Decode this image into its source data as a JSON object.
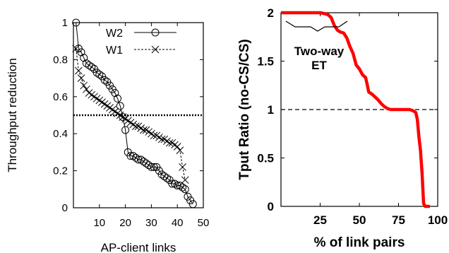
{
  "chart_data": [
    {
      "type": "line",
      "xlabel": "AP-client links",
      "ylabel": "Throughput reduction",
      "xlim": [
        0,
        50
      ],
      "ylim": [
        0,
        1
      ],
      "xticks": [
        "10",
        "20",
        "30",
        "40",
        "50"
      ],
      "yticks": [
        "0",
        "0.2",
        "0.4",
        "0.6",
        "0.8",
        "1"
      ],
      "legend_position": "top-right",
      "reference_line": 0.5,
      "series": [
        {
          "name": "W2",
          "marker": "circle",
          "line": "solid",
          "x": [
            1,
            2,
            3,
            4,
            5,
            6,
            7,
            8,
            9,
            10,
            11,
            12,
            13,
            14,
            15,
            16,
            17,
            18,
            19,
            20,
            21,
            22,
            23,
            24,
            25,
            26,
            27,
            28,
            29,
            30,
            31,
            32,
            33,
            34,
            35,
            36,
            37,
            38,
            39,
            40,
            41,
            42,
            43,
            44,
            45,
            46
          ],
          "y": [
            1.0,
            0.86,
            0.84,
            0.81,
            0.78,
            0.77,
            0.76,
            0.75,
            0.73,
            0.72,
            0.71,
            0.69,
            0.68,
            0.66,
            0.64,
            0.62,
            0.59,
            0.55,
            0.49,
            0.42,
            0.3,
            0.28,
            0.28,
            0.27,
            0.26,
            0.26,
            0.25,
            0.24,
            0.23,
            0.22,
            0.22,
            0.22,
            0.2,
            0.18,
            0.17,
            0.16,
            0.15,
            0.13,
            0.13,
            0.12,
            0.12,
            0.11,
            0.1,
            0.06,
            0.04,
            0.02
          ]
        },
        {
          "name": "W1",
          "marker": "x",
          "line": "dashed",
          "x": [
            1,
            2,
            3,
            4,
            5,
            6,
            7,
            8,
            9,
            10,
            11,
            12,
            13,
            14,
            15,
            16,
            17,
            18,
            19,
            20,
            21,
            22,
            23,
            24,
            25,
            26,
            27,
            28,
            29,
            30,
            31,
            32,
            33,
            34,
            35,
            36,
            37,
            38,
            39,
            40,
            41,
            42,
            43
          ],
          "y": [
            0.86,
            0.74,
            0.7,
            0.66,
            0.64,
            0.62,
            0.61,
            0.6,
            0.59,
            0.58,
            0.57,
            0.56,
            0.55,
            0.54,
            0.53,
            0.52,
            0.51,
            0.5,
            0.49,
            0.48,
            0.47,
            0.46,
            0.45,
            0.44,
            0.44,
            0.43,
            0.42,
            0.42,
            0.41,
            0.4,
            0.39,
            0.39,
            0.38,
            0.37,
            0.37,
            0.36,
            0.35,
            0.35,
            0.34,
            0.33,
            0.31,
            0.22,
            0.15
          ]
        }
      ]
    },
    {
      "type": "line",
      "xlabel": "% of link pairs",
      "ylabel": "Tput Ratio (no-CS/CS)",
      "xlim": [
        0,
        100
      ],
      "ylim": [
        0,
        2
      ],
      "xticks": [
        "25",
        "50",
        "75",
        "100"
      ],
      "yticks": [
        "0",
        "0.5",
        "1",
        "1.5",
        "2"
      ],
      "reference_line": 1,
      "annotation": [
        "Two-way",
        "ET"
      ],
      "series": [
        {
          "color": "#ff0000",
          "x": [
            0,
            10,
            20,
            25,
            28,
            30,
            32,
            34,
            36,
            38,
            40,
            42,
            44,
            46,
            48,
            50,
            52,
            54,
            55,
            56,
            57,
            58,
            60,
            62,
            64,
            66,
            68,
            70,
            72,
            74,
            76,
            78,
            80,
            82,
            84,
            86,
            87,
            88,
            89,
            90,
            91,
            92,
            93,
            94,
            95
          ],
          "y": [
            2.0,
            2.0,
            2.0,
            2.0,
            1.99,
            1.98,
            1.95,
            1.87,
            1.82,
            1.8,
            1.79,
            1.74,
            1.65,
            1.58,
            1.46,
            1.42,
            1.36,
            1.33,
            1.26,
            1.18,
            1.17,
            1.16,
            1.13,
            1.1,
            1.06,
            1.03,
            1.01,
            1.0,
            1.0,
            1.0,
            1.0,
            1.0,
            1.0,
            1.0,
            0.99,
            0.97,
            0.9,
            0.72,
            0.58,
            0.35,
            0.03,
            0.0,
            0.0,
            0.0,
            0.0
          ]
        }
      ]
    }
  ]
}
